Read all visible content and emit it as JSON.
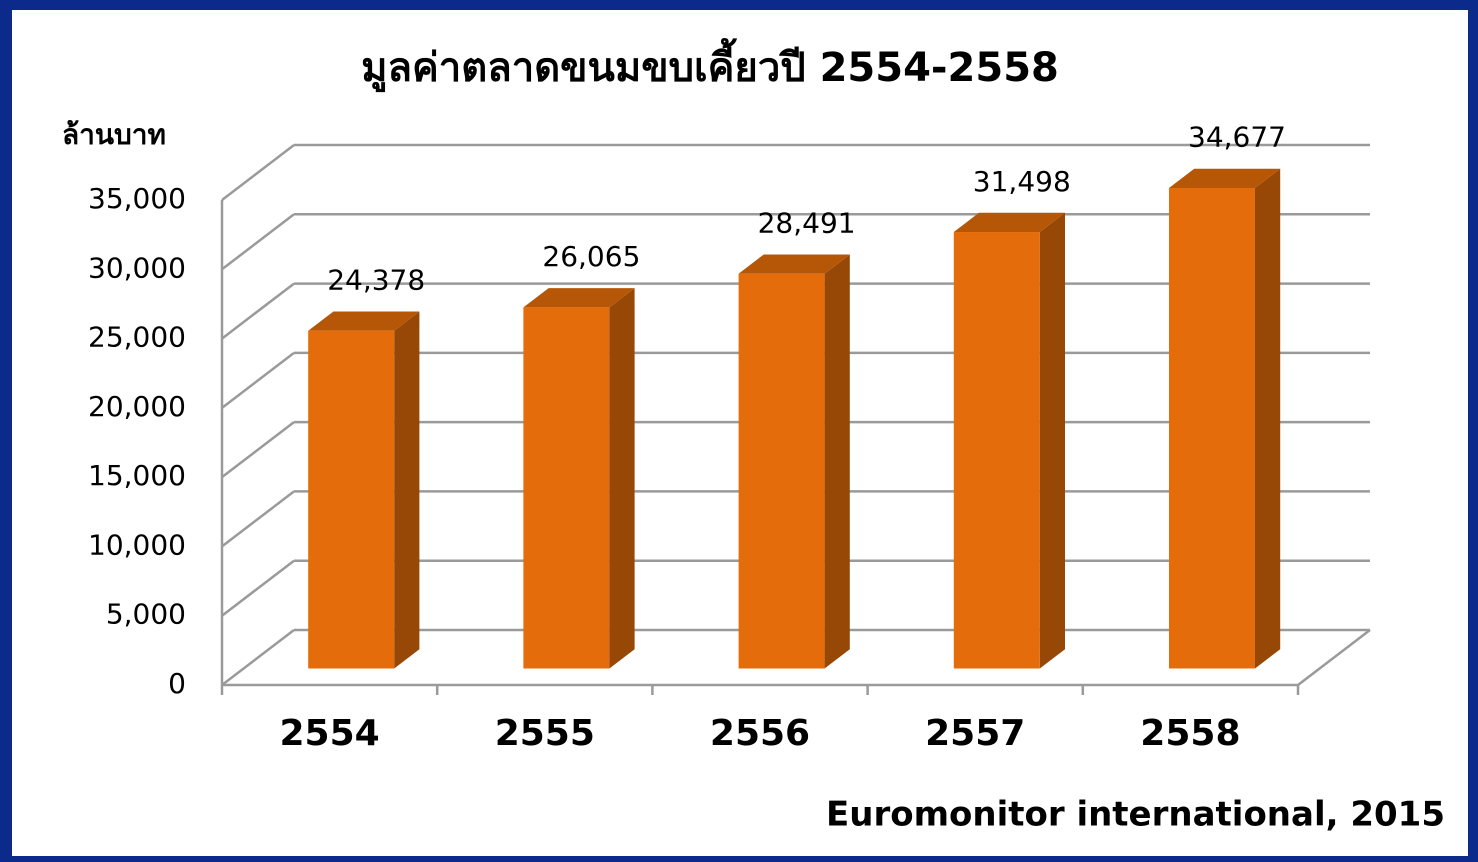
{
  "chart_data": {
    "type": "bar3d",
    "title": "มูลค่าตลาดขนมขบเคี้ยวปี 2554-2558",
    "y_label": "ล้านบาท",
    "source": "Euromonitor international, 2015",
    "categories": [
      "2554",
      "2555",
      "2556",
      "2557",
      "2558"
    ],
    "values": [
      24378,
      26065,
      28491,
      31498,
      34677
    ],
    "value_labels": [
      "24,378",
      "26,065",
      "28,491",
      "31,498",
      "34,677"
    ],
    "color": "#e46c0a",
    "ylim": [
      0,
      35000
    ],
    "yticks": [
      0,
      {
        "value": 5000,
        "label": "5,000"
      },
      {
        "value": 10000,
        "label": "10,000"
      },
      {
        "value": 15000,
        "label": "15,000"
      },
      {
        "value": 20000,
        "label": "20,000"
      },
      {
        "value": 25000,
        "label": "25,000"
      },
      {
        "value": 30000,
        "label": "30,000"
      },
      {
        "value": 35000,
        "label": "35,000"
      }
    ],
    "grid": true
  }
}
